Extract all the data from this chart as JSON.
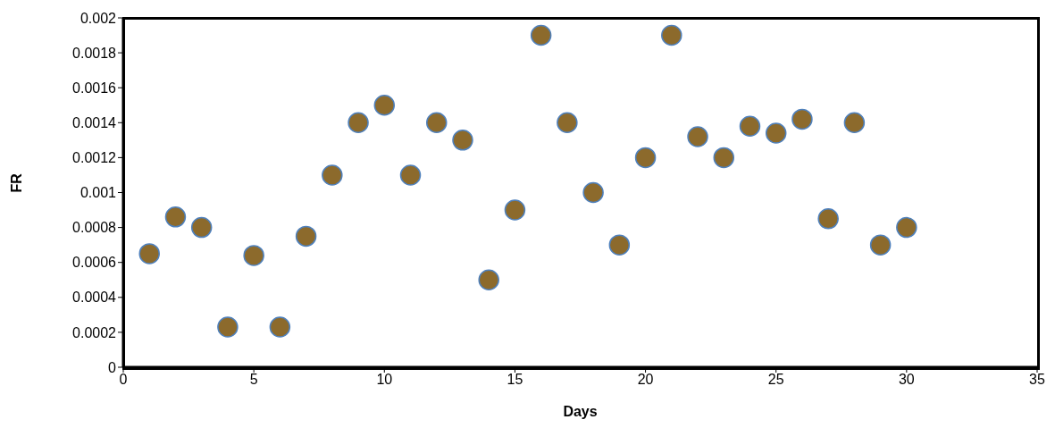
{
  "chart_data": {
    "type": "scatter",
    "xlabel": "Days",
    "ylabel": "FR",
    "x": [
      1,
      2,
      3,
      4,
      5,
      6,
      7,
      8,
      9,
      10,
      11,
      12,
      13,
      14,
      15,
      16,
      17,
      18,
      19,
      20,
      21,
      22,
      23,
      24,
      25,
      26,
      27,
      28,
      29,
      30
    ],
    "series": [
      {
        "color": "#8c6a2c",
        "values": [
          0.00065,
          0.00086,
          0.0008,
          0.00023,
          0.00064,
          0.00023,
          0.00075,
          0.0011,
          0.0014,
          0.0015,
          0.0011,
          0.0014,
          0.0013,
          0.0005,
          0.0009,
          0.0019,
          0.0014,
          0.001,
          0.0007,
          0.0012,
          0.0019,
          0.00132,
          0.0012,
          0.00138,
          0.00134,
          0.00142,
          0.00085,
          0.0014,
          0.0007,
          0.0008
        ]
      }
    ],
    "xlim": [
      0,
      35
    ],
    "xticks": [
      0,
      5,
      10,
      15,
      20,
      25,
      30,
      35
    ],
    "ylim": [
      0,
      0.002
    ],
    "yticks": [
      0,
      0.0002,
      0.0004,
      0.0006,
      0.0008,
      0.001,
      0.0012,
      0.0014,
      0.0016,
      0.0018,
      0.002
    ],
    "grid": false,
    "marker": "circle"
  }
}
